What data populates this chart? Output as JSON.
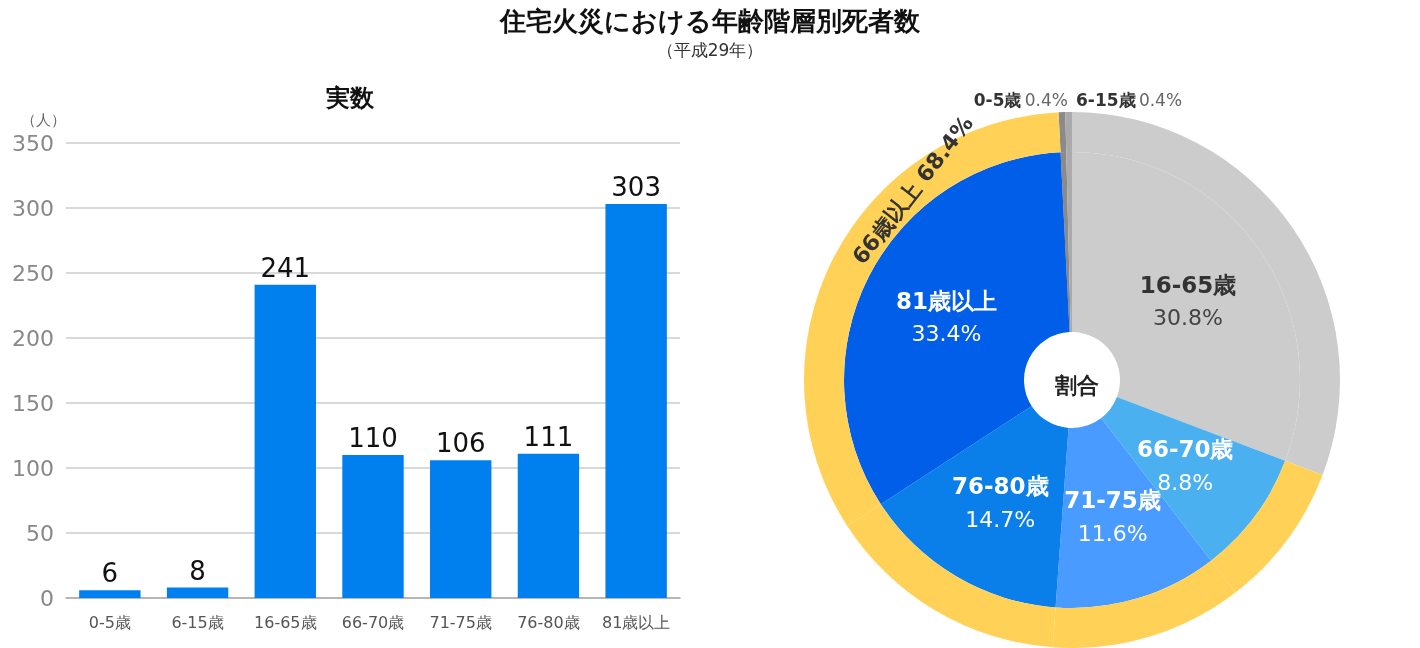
{
  "chart_data": [
    {
      "type": "other",
      "title": "住宅火災における年齢階層別死者数",
      "subtitle": "（平成29年）"
    },
    {
      "type": "bar",
      "title": "実数",
      "ylabel": "（人）",
      "categories": [
        "0-5歳",
        "6-15歳",
        "16-65歳",
        "66-70歳",
        "71-75歳",
        "76-80歳",
        "81歳以上"
      ],
      "values": [
        6,
        8,
        241,
        110,
        106,
        111,
        303
      ],
      "color": "#0080ee",
      "ylim": [
        0,
        350
      ],
      "yticks": [
        0,
        50,
        100,
        150,
        200,
        250,
        300,
        350
      ],
      "grid": "y",
      "data_labels": true
    },
    {
      "type": "donut",
      "title": "割合",
      "categories": [
        "0-5歳",
        "6-15歳",
        "16-65歳",
        "66-70歳",
        "71-75歳",
        "76-80歳",
        "81歳以上"
      ],
      "series": [
        {
          "values": [
            0.4,
            0.4,
            30.8,
            8.8,
            11.6,
            14.7,
            33.4
          ],
          "colors": [
            "#8a8a8a",
            "#aaaaaa",
            "#cccccc",
            "#4ab0f0",
            "#4a9bff",
            "#0a7fea",
            "#005ee8"
          ],
          "value_labels": [
            "0.4%",
            "0.4%",
            "30.8%",
            "8.8%",
            "11.6%",
            "14.7%",
            "33.4%"
          ]
        },
        {
          "values": [
            0.4,
            0.4,
            30.8,
            8.8,
            11.6,
            14.7,
            33.4
          ],
          "colors": [
            "#8a8a8a",
            "#aaaaaa",
            "#cccccc",
            "#ffd257",
            "#ffd257",
            "#ffd257",
            "#ffd257"
          ]
        }
      ],
      "annotations": [
        "66歳以上 68.4%"
      ]
    }
  ]
}
